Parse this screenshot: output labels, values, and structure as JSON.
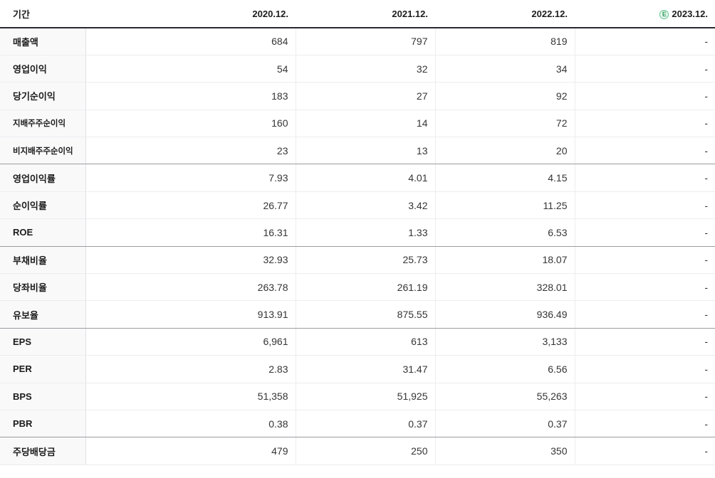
{
  "table": {
    "period_label": "기간",
    "columns": [
      {
        "label": "2020.12.",
        "estimate": false
      },
      {
        "label": "2021.12.",
        "estimate": false
      },
      {
        "label": "2022.12.",
        "estimate": false
      },
      {
        "label": "2023.12.",
        "estimate": true
      }
    ],
    "estimate_icon": {
      "glyph": "E",
      "meaning": "estimate-consensus",
      "color": "#2f9e5f",
      "border": "#5fc48d",
      "bg": "#e9f7ef"
    },
    "rows": [
      {
        "label": "매출액",
        "sub": false,
        "group_end": false,
        "values": [
          "684",
          "797",
          "819",
          "-"
        ]
      },
      {
        "label": "영업이익",
        "sub": false,
        "group_end": false,
        "values": [
          "54",
          "32",
          "34",
          "-"
        ]
      },
      {
        "label": "당기순이익",
        "sub": false,
        "group_end": false,
        "values": [
          "183",
          "27",
          "92",
          "-"
        ]
      },
      {
        "label": "지배주주순이익",
        "sub": true,
        "group_end": false,
        "values": [
          "160",
          "14",
          "72",
          "-"
        ]
      },
      {
        "label": "비지배주주순이익",
        "sub": true,
        "group_end": true,
        "values": [
          "23",
          "13",
          "20",
          "-"
        ]
      },
      {
        "label": "영업이익률",
        "sub": false,
        "group_end": false,
        "values": [
          "7.93",
          "4.01",
          "4.15",
          "-"
        ]
      },
      {
        "label": "순이익률",
        "sub": false,
        "group_end": false,
        "values": [
          "26.77",
          "3.42",
          "11.25",
          "-"
        ]
      },
      {
        "label": "ROE",
        "sub": false,
        "group_end": true,
        "values": [
          "16.31",
          "1.33",
          "6.53",
          "-"
        ]
      },
      {
        "label": "부채비율",
        "sub": false,
        "group_end": false,
        "values": [
          "32.93",
          "25.73",
          "18.07",
          "-"
        ]
      },
      {
        "label": "당좌비율",
        "sub": false,
        "group_end": false,
        "values": [
          "263.78",
          "261.19",
          "328.01",
          "-"
        ]
      },
      {
        "label": "유보율",
        "sub": false,
        "group_end": true,
        "values": [
          "913.91",
          "875.55",
          "936.49",
          "-"
        ]
      },
      {
        "label": "EPS",
        "sub": false,
        "group_end": false,
        "values": [
          "6,961",
          "613",
          "3,133",
          "-"
        ]
      },
      {
        "label": "PER",
        "sub": false,
        "group_end": false,
        "values": [
          "2.83",
          "31.47",
          "6.56",
          "-"
        ]
      },
      {
        "label": "BPS",
        "sub": false,
        "group_end": false,
        "values": [
          "51,358",
          "51,925",
          "55,263",
          "-"
        ]
      },
      {
        "label": "PBR",
        "sub": false,
        "group_end": true,
        "values": [
          "0.38",
          "0.37",
          "0.37",
          "-"
        ]
      },
      {
        "label": "주당배당금",
        "sub": false,
        "group_end": false,
        "values": [
          "479",
          "250",
          "350",
          "-"
        ]
      }
    ],
    "colors": {
      "header_border": "#2a2a2e",
      "group_border": "#9c9ca1",
      "row_border": "#ededf0",
      "label_bg": "#f9f9fa",
      "value_text": "#353535",
      "label_text": "#1b1b1b",
      "estimate_green": "#2f9e5f"
    }
  }
}
